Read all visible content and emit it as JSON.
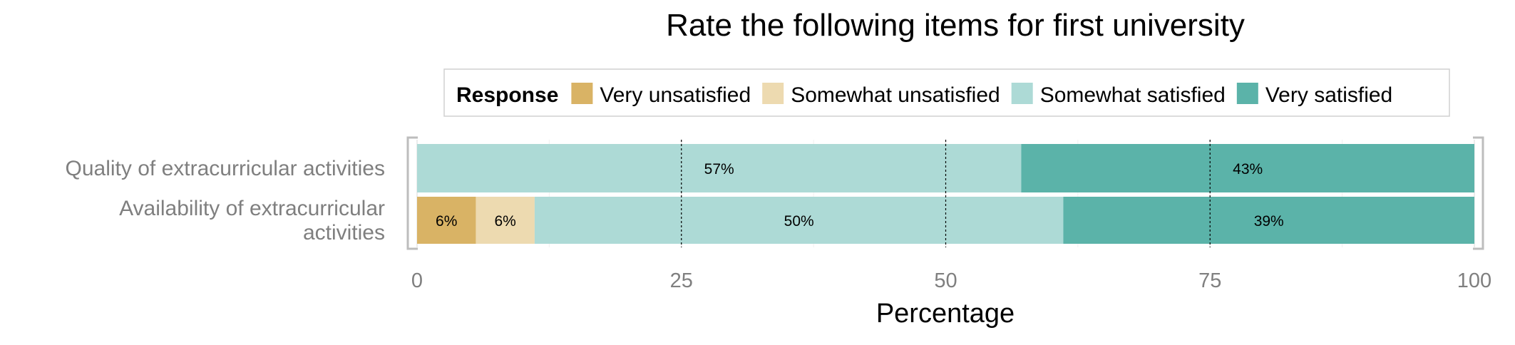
{
  "chart_data": {
    "type": "bar",
    "orientation": "horizontal",
    "stacked": true,
    "title": "Rate the following items for first university",
    "xlabel": "Percentage",
    "ylabel": "",
    "xlim": [
      0,
      100
    ],
    "x_ticks": [
      "0",
      "25",
      "50",
      "75",
      "100"
    ],
    "grid": true,
    "legend": {
      "title": "Response",
      "position": "top"
    },
    "categories": [
      [
        "Quality of extracurricular activities"
      ],
      [
        "Availability of extracurricular",
        "activities"
      ]
    ],
    "series": [
      {
        "name": "Very unsatisfied",
        "color": "#D9B365",
        "values": [
          0,
          5.56
        ],
        "labels": [
          "",
          "6%"
        ]
      },
      {
        "name": "Somewhat unsatisfied",
        "color": "#EDDAB0",
        "values": [
          0,
          5.56
        ],
        "labels": [
          "",
          "6%"
        ]
      },
      {
        "name": "Somewhat satisfied",
        "color": "#ADDAD6",
        "values": [
          57.14,
          50.0
        ],
        "labels": [
          "57%",
          "50%"
        ]
      },
      {
        "name": "Very satisfied",
        "color": "#5BB3A9",
        "values": [
          42.86,
          38.88
        ],
        "labels": [
          "43%",
          "39%"
        ]
      }
    ]
  }
}
